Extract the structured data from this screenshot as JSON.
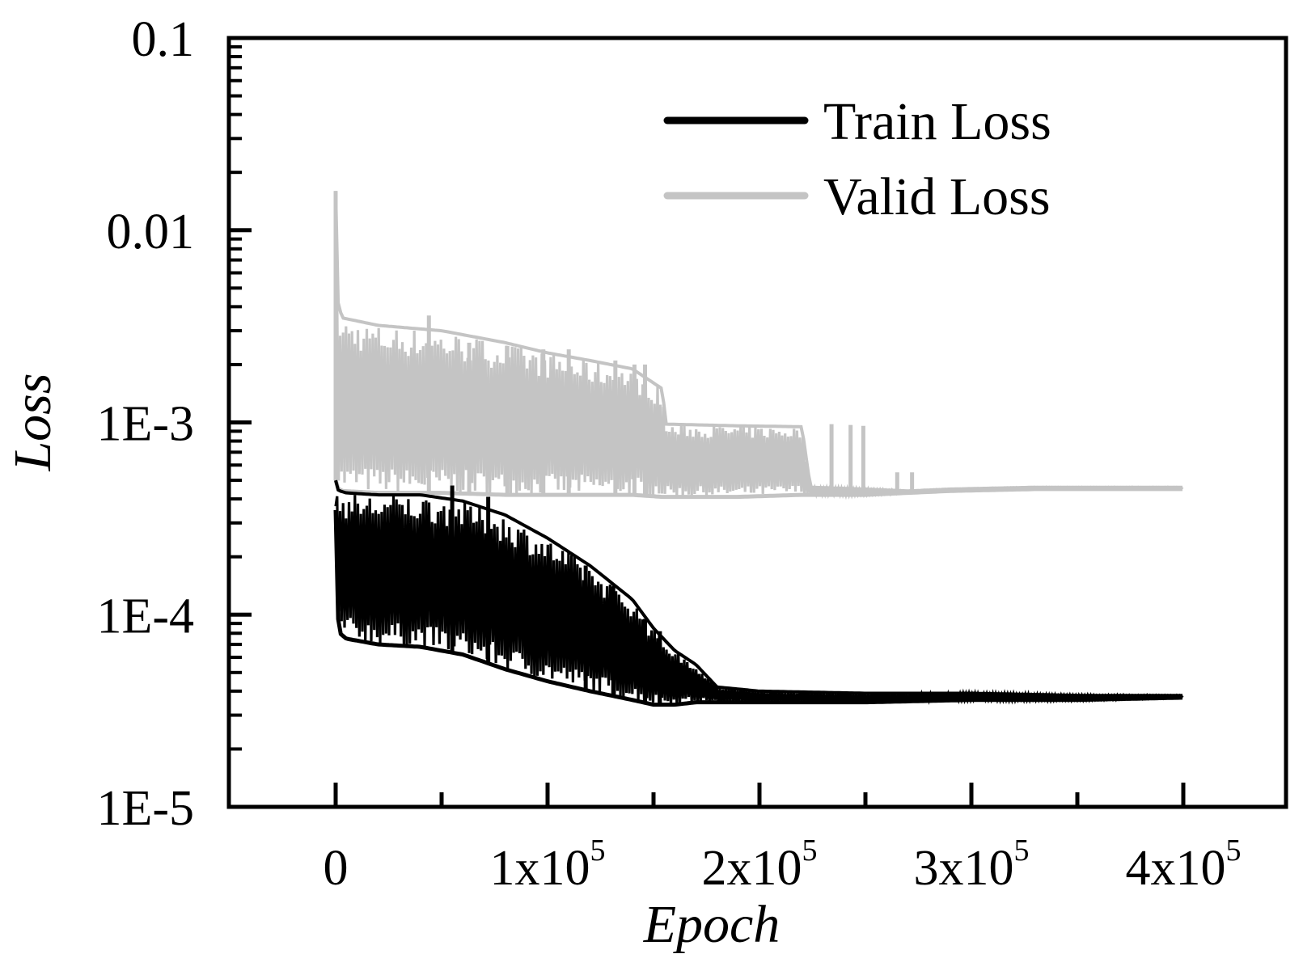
{
  "chart_data": {
    "type": "line",
    "xlabel": "Epoch",
    "ylabel": "Loss",
    "x_scale": "linear",
    "y_scale": "log",
    "xlim": [
      -50000,
      450000
    ],
    "ylim": [
      1e-05,
      0.1
    ],
    "x_ticks": [
      {
        "value": 0,
        "label": "0",
        "exp": ""
      },
      {
        "value": 100000,
        "label": "1x10",
        "exp": "5"
      },
      {
        "value": 200000,
        "label": "2x10",
        "exp": "5"
      },
      {
        "value": 300000,
        "label": "3x10",
        "exp": "5"
      },
      {
        "value": 400000,
        "label": "4x10",
        "exp": "5"
      }
    ],
    "y_ticks": [
      {
        "value": 0.1,
        "label": "0.1"
      },
      {
        "value": 0.01,
        "label": "0.01"
      },
      {
        "value": 0.001,
        "label": "1E-3"
      },
      {
        "value": 0.0001,
        "label": "1E-4"
      },
      {
        "value": 1e-05,
        "label": "1E-5"
      }
    ],
    "legend": {
      "position": "top-right"
    },
    "series": [
      {
        "name": "Valid Loss",
        "color": "#c4c4c4",
        "band_x": [
          0,
          500,
          3000,
          20000,
          50000,
          80000,
          100000,
          120000,
          140000,
          154000,
          156000,
          190000,
          220000,
          224000,
          250000,
          270000,
          290000,
          330000,
          370000,
          400000
        ],
        "band_upper": [
          0.016,
          0.0045,
          0.0035,
          0.0032,
          0.003,
          0.0026,
          0.0023,
          0.0021,
          0.0019,
          0.0015,
          0.00098,
          0.00096,
          0.00095,
          0.00046,
          0.00045,
          0.00044,
          0.00045,
          0.00046,
          0.00046,
          0.00046
        ],
        "band_lower": [
          0.0005,
          0.00046,
          0.00044,
          0.00043,
          0.00043,
          0.00042,
          0.00042,
          0.00042,
          0.00042,
          0.00041,
          0.00041,
          0.00041,
          0.00042,
          0.00042,
          0.00042,
          0.00043,
          0.00044,
          0.00045,
          0.00045,
          0.00045
        ],
        "spikes": [
          {
            "x": 0,
            "y": 0.016
          },
          {
            "x": 44000,
            "y": 0.0036
          },
          {
            "x": 63000,
            "y": 0.0026
          },
          {
            "x": 81000,
            "y": 0.0025
          },
          {
            "x": 98000,
            "y": 0.0024
          },
          {
            "x": 110000,
            "y": 0.0024
          },
          {
            "x": 132000,
            "y": 0.0021
          },
          {
            "x": 141000,
            "y": 0.002
          },
          {
            "x": 146000,
            "y": 0.002
          },
          {
            "x": 234000,
            "y": 0.00098
          },
          {
            "x": 243000,
            "y": 0.00097
          },
          {
            "x": 249000,
            "y": 0.00096
          },
          {
            "x": 265000,
            "y": 0.00055
          },
          {
            "x": 272000,
            "y": 0.00055
          }
        ]
      },
      {
        "name": "Train Loss",
        "color": "#000000",
        "band_x": [
          0,
          500,
          2000,
          5000,
          20000,
          40000,
          60000,
          80000,
          100000,
          120000,
          140000,
          150000,
          160000,
          170000,
          180000,
          200000,
          250000,
          300000,
          350000,
          400000
        ],
        "band_upper": [
          0.0005,
          0.00045,
          0.00044,
          0.00043,
          0.00042,
          0.00042,
          0.00039,
          0.00033,
          0.00025,
          0.00018,
          0.00012,
          8.5e-05,
          6.5e-05,
          5.5e-05,
          4.2e-05,
          4e-05,
          3.9e-05,
          3.9e-05,
          3.8e-05,
          3.8e-05
        ],
        "band_lower": [
          0.00035,
          0.00011,
          8e-05,
          7.5e-05,
          7e-05,
          6.8e-05,
          6.2e-05,
          5.2e-05,
          4.5e-05,
          4e-05,
          3.6e-05,
          3.4e-05,
          3.4e-05,
          3.5e-05,
          3.5e-05,
          3.5e-05,
          3.5e-05,
          3.6e-05,
          3.6e-05,
          3.7e-05
        ],
        "spikes": [
          {
            "x": 55000,
            "y": 0.00047
          },
          {
            "x": 72000,
            "y": 0.00041
          },
          {
            "x": 118000,
            "y": 0.00018
          },
          {
            "x": 131000,
            "y": 0.00014
          },
          {
            "x": 146000,
            "y": 9.5e-05
          },
          {
            "x": 153000,
            "y": 8.2e-05
          }
        ]
      }
    ]
  }
}
